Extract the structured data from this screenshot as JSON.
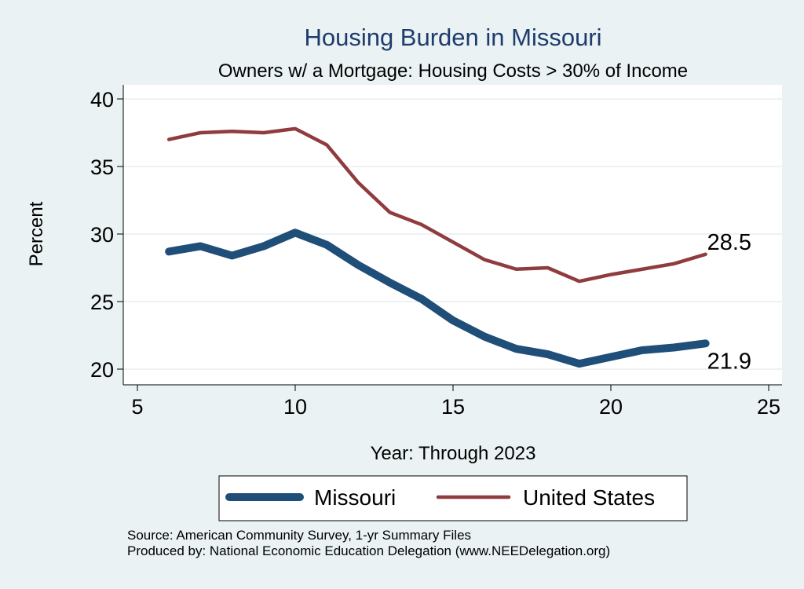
{
  "chart_data": {
    "type": "line",
    "title": "Housing Burden in Missouri",
    "subtitle": "Owners w/ a Mortgage: Housing Costs > 30% of Income",
    "xlabel": "Year: Through 2023",
    "ylabel": "Percent",
    "xlim": [
      5,
      25
    ],
    "ylim": [
      20,
      40
    ],
    "xticks": [
      5,
      10,
      15,
      20,
      25
    ],
    "yticks": [
      20,
      25,
      30,
      35,
      40
    ],
    "grid": true,
    "legend_position": "bottom",
    "x": [
      6,
      7,
      8,
      9,
      10,
      11,
      12,
      13,
      14,
      15,
      16,
      17,
      18,
      19,
      20,
      21,
      22,
      23
    ],
    "series": [
      {
        "name": "Missouri",
        "color": "#1f4e79",
        "values": [
          28.7,
          29.1,
          28.4,
          29.1,
          30.1,
          29.2,
          27.7,
          26.4,
          25.2,
          23.6,
          22.4,
          21.5,
          21.1,
          20.4,
          20.9,
          21.4,
          21.6,
          21.9
        ],
        "end_label": "21.9"
      },
      {
        "name": "United States",
        "color": "#903c3f",
        "values": [
          37.0,
          37.5,
          37.6,
          37.5,
          37.8,
          36.6,
          33.8,
          31.6,
          30.7,
          29.4,
          28.1,
          27.4,
          27.5,
          26.5,
          27.0,
          27.4,
          27.8,
          28.5
        ],
        "end_label": "28.5"
      }
    ]
  },
  "footer": {
    "source": "Source: American Community Survey, 1-yr Summary Files",
    "produced": "Produced by: National Economic Education Delegation (www.NEEDelegation.org)"
  }
}
